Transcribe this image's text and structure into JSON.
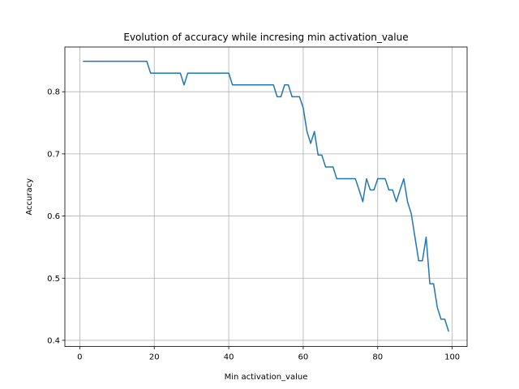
{
  "chart_data": {
    "type": "line",
    "title": "Evolution of accuracy while incresing min activation_value",
    "xlabel": "Min activation_value",
    "ylabel": "Accuracy",
    "xlim": [
      -4,
      104
    ],
    "ylim": [
      0.39,
      0.872
    ],
    "xticks": [
      0,
      20,
      40,
      60,
      80,
      100
    ],
    "xtick_labels": [
      "0",
      "20",
      "40",
      "60",
      "80",
      "100"
    ],
    "yticks": [
      0.4,
      0.5,
      0.6,
      0.7,
      0.8
    ],
    "ytick_labels": [
      "0.4",
      "0.5",
      "0.6",
      "0.7",
      "0.8"
    ],
    "grid": true,
    "series": [
      {
        "color": "#1f77b4",
        "x": [
          1,
          5,
          10,
          15,
          18,
          19,
          20,
          25,
          27,
          28,
          29,
          30,
          35,
          40,
          41,
          45,
          50,
          52,
          53,
          54,
          55,
          56,
          57,
          58,
          59,
          60,
          61,
          62,
          63,
          64,
          65,
          66,
          67,
          68,
          69,
          70,
          71,
          72,
          73,
          74,
          75,
          76,
          77,
          78,
          79,
          80,
          81,
          82,
          83,
          84,
          85,
          86,
          87,
          88,
          89,
          90,
          91,
          92,
          93,
          94,
          95,
          96,
          97,
          98,
          99
        ],
        "values": [
          0.849,
          0.849,
          0.849,
          0.849,
          0.849,
          0.83,
          0.83,
          0.83,
          0.83,
          0.811,
          0.83,
          0.83,
          0.83,
          0.83,
          0.811,
          0.811,
          0.811,
          0.811,
          0.792,
          0.792,
          0.811,
          0.811,
          0.792,
          0.792,
          0.792,
          0.774,
          0.736,
          0.717,
          0.736,
          0.698,
          0.698,
          0.679,
          0.679,
          0.679,
          0.66,
          0.66,
          0.66,
          0.66,
          0.66,
          0.66,
          0.642,
          0.623,
          0.66,
          0.642,
          0.642,
          0.66,
          0.66,
          0.66,
          0.642,
          0.642,
          0.623,
          0.642,
          0.66,
          0.623,
          0.604,
          0.566,
          0.528,
          0.528,
          0.566,
          0.491,
          0.491,
          0.453,
          0.434,
          0.434,
          0.415
        ]
      }
    ]
  }
}
